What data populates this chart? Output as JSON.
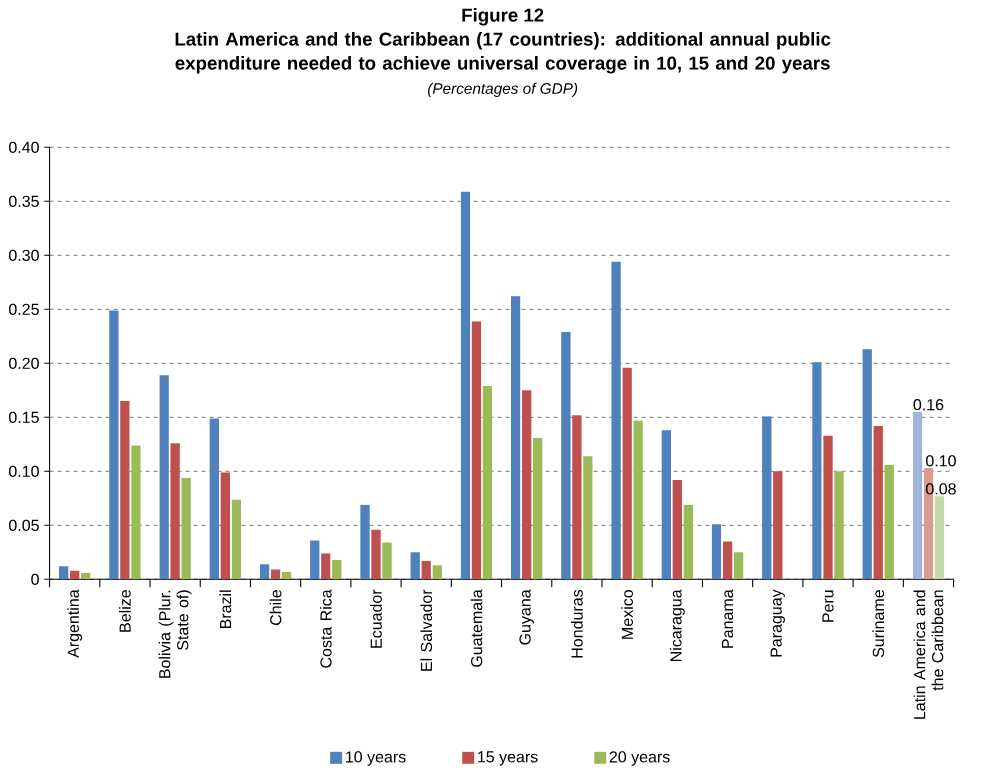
{
  "chart_data": {
    "type": "bar",
    "annotations": [
      "Figure 12"
    ],
    "title": "Latin America and the Caribbean (17 countries): additional annual public expenditure needed to achieve universal coverage in 10, 15 and 20 years",
    "subtitle": "(Percentages of GDP)",
    "categories": [
      "Argentina",
      "Belize",
      "Bolivia (Plur. State of)",
      "Brazil",
      "Chile",
      "Costa Rica",
      "Ecuador",
      "El Salvador",
      "Guatemala",
      "Guyana",
      "Honduras",
      "Mexico",
      "Nicaragua",
      "Panama",
      "Paraguay",
      "Peru",
      "Suriname",
      "Latin America and the Caribbean"
    ],
    "series": [
      {
        "name": "10 years",
        "color": "#4f81bd",
        "colors": [
          "#4f81bd",
          "#4f81bd",
          "#4f81bd",
          "#4f81bd",
          "#4f81bd",
          "#4f81bd",
          "#4f81bd",
          "#4f81bd",
          "#4f81bd",
          "#4f81bd",
          "#4f81bd",
          "#4f81bd",
          "#4f81bd",
          "#4f81bd",
          "#4f81bd",
          "#4f81bd",
          "#4f81bd",
          "#9fb4dc"
        ],
        "values": [
          0.012,
          0.249,
          0.189,
          0.149,
          0.014,
          0.036,
          0.069,
          0.025,
          0.359,
          0.262,
          0.229,
          0.294,
          0.138,
          0.051,
          0.151,
          0.201,
          0.213,
          0.155
        ],
        "value_labels": [
          null,
          null,
          null,
          null,
          null,
          null,
          null,
          null,
          null,
          null,
          null,
          null,
          null,
          null,
          null,
          null,
          null,
          "0.16"
        ]
      },
      {
        "name": "15 years",
        "color": "#c0504d",
        "colors": [
          "#c0504d",
          "#c0504d",
          "#c0504d",
          "#c0504d",
          "#c0504d",
          "#c0504d",
          "#c0504d",
          "#c0504d",
          "#c0504d",
          "#c0504d",
          "#c0504d",
          "#c0504d",
          "#c0504d",
          "#c0504d",
          "#c0504d",
          "#c0504d",
          "#c0504d",
          "#d99b92"
        ],
        "values": [
          0.008,
          0.165,
          0.126,
          0.099,
          0.009,
          0.024,
          0.046,
          0.017,
          0.239,
          0.175,
          0.152,
          0.196,
          0.092,
          0.035,
          0.1,
          0.133,
          0.142,
          0.103
        ],
        "value_labels": [
          null,
          null,
          null,
          null,
          null,
          null,
          null,
          null,
          null,
          null,
          null,
          null,
          null,
          null,
          null,
          null,
          null,
          "0.10"
        ]
      },
      {
        "name": "20 years",
        "color": "#9bbb59",
        "colors": [
          "#9bbb59",
          "#9bbb59",
          "#9bbb59",
          "#9bbb59",
          "#9bbb59",
          "#9bbb59",
          "#9bbb59",
          "#9bbb59",
          "#9bbb59",
          "#9bbb59",
          "#9bbb59",
          "#9bbb59",
          "#9bbb59",
          "#9bbb59",
          "#9bbb59",
          "#9bbb59",
          "#9bbb59",
          "#c5d9a4"
        ],
        "values": [
          0.006,
          0.124,
          0.094,
          0.074,
          0.007,
          0.018,
          0.034,
          0.013,
          0.179,
          0.131,
          0.114,
          0.147,
          0.069,
          0.025,
          null,
          0.1,
          0.106,
          0.077
        ],
        "value_labels": [
          null,
          null,
          null,
          null,
          null,
          null,
          null,
          null,
          null,
          null,
          null,
          null,
          null,
          null,
          null,
          null,
          null,
          "0.08"
        ]
      }
    ],
    "ylim": [
      0,
      0.4
    ],
    "yticks": [
      0,
      0.05,
      {
        "value": 0.1,
        "label": "0.10"
      },
      0.15,
      {
        "value": 0.2,
        "label": "0.20"
      },
      0.25,
      {
        "value": 0.3,
        "label": "0.30"
      },
      0.35,
      {
        "value": 0.4,
        "label": "0.40"
      }
    ],
    "grid": "y",
    "legend": "bottom"
  }
}
